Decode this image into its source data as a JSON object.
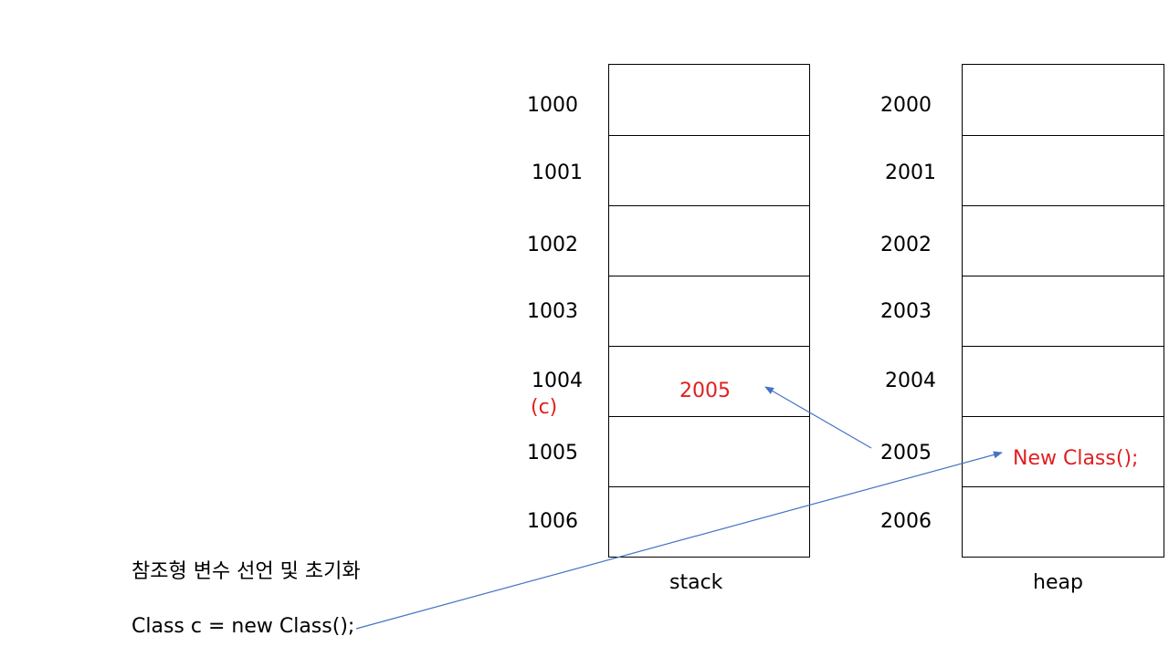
{
  "stack": {
    "label": "stack",
    "addresses": [
      "1000",
      "1001",
      "1002",
      "1003",
      "1004",
      "1005",
      "1006"
    ],
    "var_name": "(c)",
    "stored_value": "2005"
  },
  "heap": {
    "label": "heap",
    "addresses": [
      "2000",
      "2001",
      "2002",
      "2003",
      "2004",
      "2005",
      "2006"
    ],
    "stored_value": "New Class();"
  },
  "text": {
    "title": "참조형 변수 선언 및 초기화",
    "code": "Class c = new Class();"
  },
  "colors": {
    "highlight": "#e02020",
    "arrow": "#4472c4",
    "grid": "#000000"
  }
}
